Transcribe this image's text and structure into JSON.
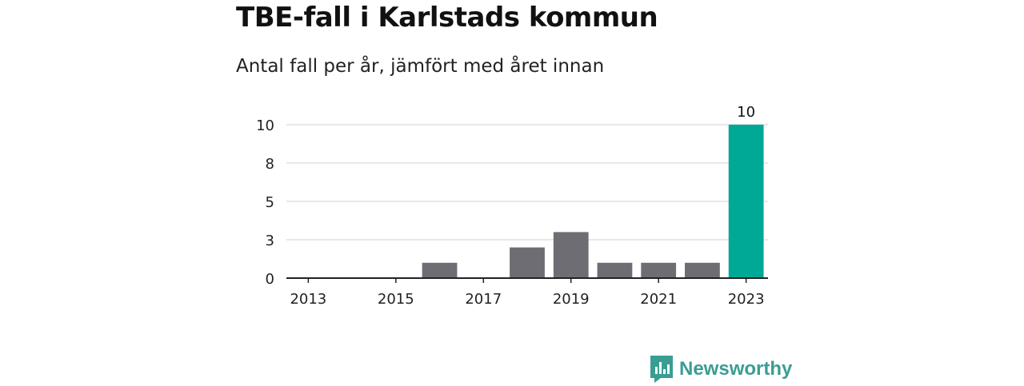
{
  "header": {
    "title": "TBE-fall i Karlstads kommun",
    "subtitle": "Antal fall per år, jämfört med året innan"
  },
  "brand": {
    "name": "Newsworthy",
    "icon": "newsworthy-logo-icon",
    "color": "#3a9d93"
  },
  "colors": {
    "bar_default": "#6e6d73",
    "bar_highlight": "#00a896",
    "grid": "#d9d9d9",
    "axis": "#222222"
  },
  "chart_data": {
    "type": "bar",
    "categories": [
      "2013",
      "2014",
      "2015",
      "2016",
      "2017",
      "2018",
      "2019",
      "2020",
      "2021",
      "2022",
      "2023"
    ],
    "values": [
      0,
      0,
      0,
      1,
      0,
      2,
      3,
      1,
      1,
      1,
      10
    ],
    "highlight_index": 10,
    "data_labels": [
      {
        "index": 10,
        "text": "10"
      }
    ],
    "x_tick_labels": [
      "2013",
      "2015",
      "2017",
      "2019",
      "2021",
      "2023"
    ],
    "y_ticks": [
      0,
      2.5,
      5,
      7.5,
      10
    ],
    "y_tick_labels": [
      "0",
      "3",
      "5",
      "8",
      "10"
    ],
    "ylim": [
      0,
      10
    ],
    "title": "TBE-fall i Karlstads kommun",
    "subtitle": "Antal fall per år, jämfört med året innan",
    "xlabel": "",
    "ylabel": "",
    "grid": true,
    "legend": "none"
  }
}
